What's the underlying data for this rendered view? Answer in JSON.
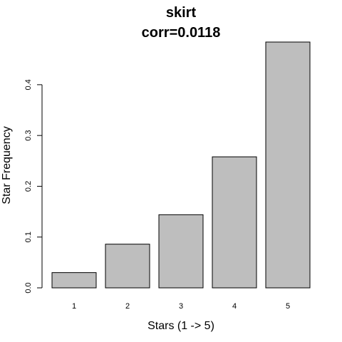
{
  "chart_data": {
    "type": "bar",
    "title": "skirt",
    "subtitle": "corr=0.0118",
    "xlabel": "Stars (1 -> 5)",
    "ylabel": "Star Frequency",
    "categories": [
      "1",
      "2",
      "3",
      "4",
      "5"
    ],
    "values": [
      0.03,
      0.086,
      0.144,
      0.258,
      0.484
    ],
    "ylim": [
      0,
      0.484
    ],
    "yticks": [
      0.0,
      0.1,
      0.2,
      0.3,
      0.4
    ],
    "ytick_labels": [
      "0.0",
      "0.1",
      "0.2",
      "0.3",
      "0.4"
    ],
    "bar_color": "#bebebe",
    "grid": false
  }
}
